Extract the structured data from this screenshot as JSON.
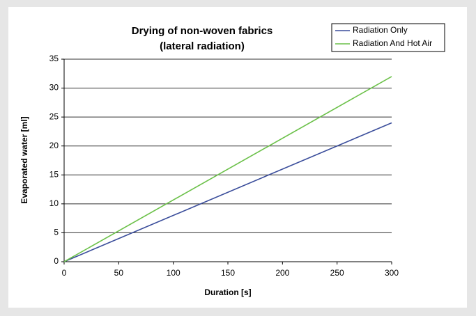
{
  "chart_data": {
    "type": "line",
    "title": "Drying of non-woven fabrics",
    "subtitle": "(lateral radiation)",
    "xlabel": "Duration [s]",
    "ylabel": "Evaporated water [ml]",
    "x": [
      0,
      300
    ],
    "series": [
      {
        "name": "Radiation Only",
        "color": "#3a4d9b",
        "values": [
          0,
          24
        ]
      },
      {
        "name": "Radiation And Hot Air",
        "color": "#6cc14a",
        "values": [
          0,
          32
        ]
      }
    ],
    "xlim": [
      0,
      300
    ],
    "xticks": [
      0,
      50,
      100,
      150,
      200,
      250,
      300
    ],
    "ylim": [
      0,
      35
    ],
    "yticks": [
      0,
      5,
      10,
      15,
      20,
      25,
      30,
      35
    ],
    "grid": true,
    "legend": "top-right"
  }
}
